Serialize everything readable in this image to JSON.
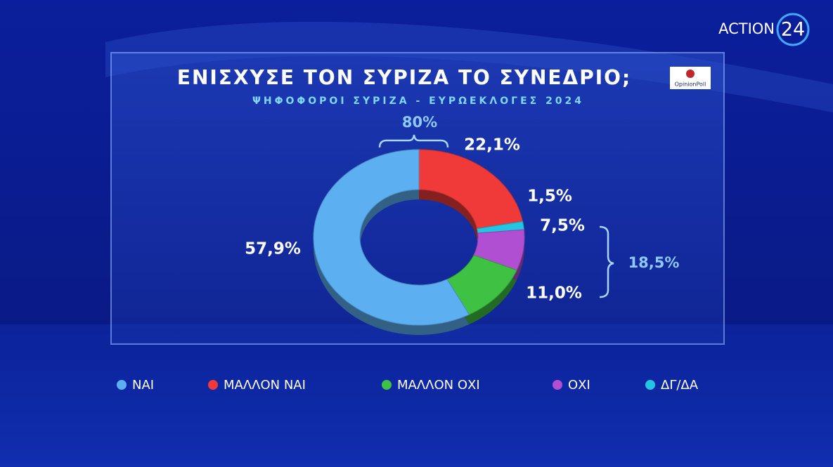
{
  "brand": {
    "channel": "ACTION",
    "channel_number": "24",
    "pollster": "OpinionPoll"
  },
  "chart_data": {
    "type": "donut",
    "title": "ΕΝΙΣΧΥΣΕ ΤΟΝ ΣΥΡΙΖΑ ΤΟ ΣΥΝΕΔΡΙΟ;",
    "subtitle": "ΨΗΦΟΦΟΡΟΙ ΣΥΡΙΖΑ - ΕΥΡΩΕΚΛΟΓΕΣ 2024",
    "categories": [
      "ΜΑΛΛΟΝ ΝΑΙ",
      "ΔΓ/ΔΑ",
      "ΟΧΙ",
      "ΜΑΛΛΟΝ ΟΧΙ",
      "ΝΑΙ"
    ],
    "values": [
      22.1,
      1.5,
      7.5,
      11.0,
      57.9
    ],
    "value_labels": [
      "22,1%",
      "1,5%",
      "7,5%",
      "11,0%",
      "57,9%"
    ],
    "colors": [
      "#f03a3a",
      "#22c6e2",
      "#b04fd2",
      "#3fc244",
      "#5cb0f2"
    ],
    "annotations": [
      {
        "text": "80%",
        "value": 80
      },
      {
        "text": "18,5%",
        "value": 18.5
      }
    ]
  }
}
